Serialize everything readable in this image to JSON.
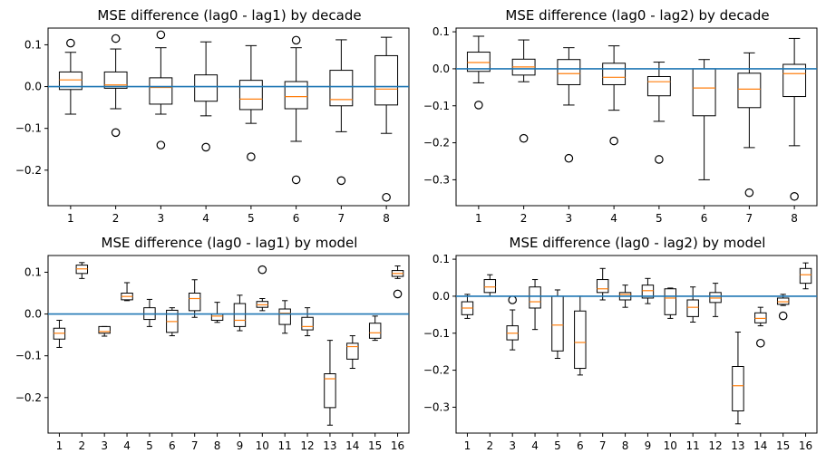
{
  "chart_data": [
    {
      "type": "boxplot",
      "title": "MSE difference (lag0 - lag1) by decade",
      "categories": [
        "1",
        "2",
        "3",
        "4",
        "5",
        "6",
        "7",
        "8"
      ],
      "ylim": [
        -0.285,
        0.14
      ],
      "yticks": [
        0.1,
        0.0,
        -0.1,
        -0.2
      ],
      "ytick_labels": [
        "0.1",
        "0.0",
        "−0.1",
        "−0.2"
      ],
      "reference_line": 0.0,
      "boxes": [
        {
          "whislo": -0.066,
          "q1": -0.007,
          "med": 0.016,
          "q3": 0.035,
          "whishi": 0.082,
          "fliers": [
            0.104
          ]
        },
        {
          "whislo": -0.053,
          "q1": -0.004,
          "med": 0.004,
          "q3": 0.035,
          "whishi": 0.09,
          "fliers": [
            0.115,
            -0.11
          ]
        },
        {
          "whislo": -0.066,
          "q1": -0.042,
          "med": -0.002,
          "q3": 0.021,
          "whishi": 0.093,
          "fliers": [
            0.124,
            -0.14
          ]
        },
        {
          "whislo": -0.07,
          "q1": -0.035,
          "med": 0.0,
          "q3": 0.028,
          "whishi": 0.107,
          "fliers": [
            -0.145
          ]
        },
        {
          "whislo": -0.088,
          "q1": -0.055,
          "med": -0.03,
          "q3": 0.015,
          "whishi": 0.098,
          "fliers": [
            -0.168
          ]
        },
        {
          "whislo": -0.131,
          "q1": -0.053,
          "med": -0.024,
          "q3": 0.012,
          "whishi": 0.093,
          "fliers": [
            0.111,
            -0.223
          ]
        },
        {
          "whislo": -0.108,
          "q1": -0.046,
          "med": -0.031,
          "q3": 0.039,
          "whishi": 0.112,
          "fliers": [
            -0.225
          ]
        },
        {
          "whislo": -0.112,
          "q1": -0.044,
          "med": -0.006,
          "q3": 0.074,
          "whishi": 0.118,
          "fliers": [
            -0.265
          ]
        }
      ]
    },
    {
      "type": "boxplot",
      "title": "MSE difference (lag0 - lag2) by decade",
      "categories": [
        "1",
        "2",
        "3",
        "4",
        "5",
        "6",
        "7",
        "8"
      ],
      "ylim": [
        -0.37,
        0.11
      ],
      "yticks": [
        0.1,
        0.0,
        -0.1,
        -0.2,
        -0.3
      ],
      "ytick_labels": [
        "0.1",
        "0.0",
        "−0.1",
        "−0.2",
        "−0.3"
      ],
      "reference_line": 0.0,
      "boxes": [
        {
          "whislo": -0.038,
          "q1": -0.007,
          "med": 0.017,
          "q3": 0.045,
          "whishi": 0.088,
          "fliers": [
            -0.098
          ]
        },
        {
          "whislo": -0.035,
          "q1": -0.017,
          "med": 0.005,
          "q3": 0.026,
          "whishi": 0.078,
          "fliers": [
            -0.188
          ]
        },
        {
          "whislo": -0.098,
          "q1": -0.043,
          "med": -0.013,
          "q3": 0.025,
          "whishi": 0.057,
          "fliers": [
            -0.242
          ]
        },
        {
          "whislo": -0.112,
          "q1": -0.043,
          "med": -0.023,
          "q3": 0.015,
          "whishi": 0.062,
          "fliers": [
            -0.195
          ]
        },
        {
          "whislo": -0.142,
          "q1": -0.073,
          "med": -0.035,
          "q3": -0.021,
          "whishi": 0.018,
          "fliers": [
            -0.245
          ]
        },
        {
          "whislo": -0.3,
          "q1": -0.127,
          "med": -0.052,
          "q3": 0.0,
          "whishi": 0.025,
          "fliers": []
        },
        {
          "whislo": -0.213,
          "q1": -0.105,
          "med": -0.055,
          "q3": -0.012,
          "whishi": 0.043,
          "fliers": [
            -0.335
          ]
        },
        {
          "whislo": -0.208,
          "q1": -0.075,
          "med": -0.013,
          "q3": 0.012,
          "whishi": 0.082,
          "fliers": [
            -0.345
          ]
        }
      ]
    },
    {
      "type": "boxplot",
      "title": "MSE difference (lag0 - lag1) by model",
      "categories": [
        "1",
        "2",
        "3",
        "4",
        "5",
        "6",
        "7",
        "8",
        "9",
        "10",
        "11",
        "12",
        "13",
        "14",
        "15",
        "16"
      ],
      "ylim": [
        -0.285,
        0.14
      ],
      "yticks": [
        0.1,
        0.0,
        -0.1,
        -0.2
      ],
      "ytick_labels": [
        "0.1",
        "0.0",
        "−0.1",
        "−0.2"
      ],
      "reference_line": 0.0,
      "boxes": [
        {
          "whislo": -0.08,
          "q1": -0.06,
          "med": -0.046,
          "q3": -0.034,
          "whishi": -0.015,
          "fliers": []
        },
        {
          "whislo": 0.085,
          "q1": 0.097,
          "med": 0.108,
          "q3": 0.117,
          "whishi": 0.123,
          "fliers": []
        },
        {
          "whislo": -0.053,
          "q1": -0.046,
          "med": -0.042,
          "q3": -0.03,
          "whishi": -0.03,
          "fliers": []
        },
        {
          "whislo": 0.032,
          "q1": 0.034,
          "med": 0.042,
          "q3": 0.05,
          "whishi": 0.075,
          "fliers": []
        },
        {
          "whislo": -0.03,
          "q1": -0.013,
          "med": 0.0,
          "q3": 0.015,
          "whishi": 0.035,
          "fliers": []
        },
        {
          "whislo": -0.052,
          "q1": -0.044,
          "med": -0.018,
          "q3": 0.009,
          "whishi": 0.015,
          "fliers": []
        },
        {
          "whislo": -0.008,
          "q1": 0.008,
          "med": 0.037,
          "q3": 0.05,
          "whishi": 0.082,
          "fliers": []
        },
        {
          "whislo": -0.02,
          "q1": -0.015,
          "med": -0.005,
          "q3": 0.0,
          "whishi": 0.028,
          "fliers": []
        },
        {
          "whislo": -0.04,
          "q1": -0.03,
          "med": -0.015,
          "q3": 0.025,
          "whishi": 0.045,
          "fliers": []
        },
        {
          "whislo": 0.008,
          "q1": 0.016,
          "med": 0.022,
          "q3": 0.03,
          "whishi": 0.037,
          "fliers": [
            0.106
          ]
        },
        {
          "whislo": -0.046,
          "q1": -0.025,
          "med": 0.002,
          "q3": 0.012,
          "whishi": 0.032,
          "fliers": []
        },
        {
          "whislo": -0.052,
          "q1": -0.038,
          "med": -0.03,
          "q3": -0.008,
          "whishi": 0.015,
          "fliers": []
        },
        {
          "whislo": -0.266,
          "q1": -0.224,
          "med": -0.155,
          "q3": -0.143,
          "whishi": -0.063,
          "fliers": []
        },
        {
          "whislo": -0.13,
          "q1": -0.108,
          "med": -0.078,
          "q3": -0.07,
          "whishi": -0.052,
          "fliers": []
        },
        {
          "whislo": -0.063,
          "q1": -0.058,
          "med": -0.045,
          "q3": -0.022,
          "whishi": -0.005,
          "fliers": []
        },
        {
          "whislo": 0.085,
          "q1": 0.09,
          "med": 0.097,
          "q3": 0.104,
          "whishi": 0.115,
          "fliers": [
            0.048
          ]
        }
      ]
    },
    {
      "type": "boxplot",
      "title": "MSE difference (lag0 - lag2) by model",
      "categories": [
        "1",
        "2",
        "3",
        "4",
        "5",
        "6",
        "7",
        "8",
        "9",
        "10",
        "11",
        "12",
        "13",
        "14",
        "15",
        "16"
      ],
      "ylim": [
        -0.37,
        0.11
      ],
      "yticks": [
        0.1,
        0.0,
        -0.1,
        -0.2,
        -0.3
      ],
      "ytick_labels": [
        "0.1",
        "0.0",
        "−0.1",
        "−0.2",
        "−0.3"
      ],
      "reference_line": 0.0,
      "boxes": [
        {
          "whislo": -0.06,
          "q1": -0.05,
          "med": -0.032,
          "q3": -0.015,
          "whishi": 0.005,
          "fliers": []
        },
        {
          "whislo": 0.0,
          "q1": 0.01,
          "med": 0.025,
          "q3": 0.045,
          "whishi": 0.058,
          "fliers": []
        },
        {
          "whislo": -0.145,
          "q1": -0.118,
          "med": -0.1,
          "q3": -0.08,
          "whishi": -0.037,
          "fliers": [
            -0.01
          ]
        },
        {
          "whislo": -0.09,
          "q1": -0.032,
          "med": -0.015,
          "q3": 0.025,
          "whishi": 0.045,
          "fliers": []
        },
        {
          "whislo": -0.168,
          "q1": -0.148,
          "med": -0.078,
          "q3": 0.0,
          "whishi": 0.017,
          "fliers": []
        },
        {
          "whislo": -0.213,
          "q1": -0.195,
          "med": -0.125,
          "q3": -0.04,
          "whishi": 0.0,
          "fliers": []
        },
        {
          "whislo": -0.01,
          "q1": 0.01,
          "med": 0.02,
          "q3": 0.045,
          "whishi": 0.075,
          "fliers": []
        },
        {
          "whislo": -0.03,
          "q1": -0.01,
          "med": 0.005,
          "q3": 0.01,
          "whishi": 0.03,
          "fliers": []
        },
        {
          "whislo": -0.02,
          "q1": -0.005,
          "med": 0.015,
          "q3": 0.03,
          "whishi": 0.048,
          "fliers": []
        },
        {
          "whislo": -0.06,
          "q1": -0.05,
          "med": -0.005,
          "q3": 0.02,
          "whishi": 0.022,
          "fliers": []
        },
        {
          "whislo": -0.07,
          "q1": -0.055,
          "med": -0.03,
          "q3": -0.01,
          "whishi": 0.025,
          "fliers": []
        },
        {
          "whislo": -0.055,
          "q1": -0.017,
          "med": -0.005,
          "q3": 0.01,
          "whishi": 0.035,
          "fliers": []
        },
        {
          "whislo": -0.345,
          "q1": -0.31,
          "med": -0.242,
          "q3": -0.19,
          "whishi": -0.097,
          "fliers": []
        },
        {
          "whislo": -0.08,
          "q1": -0.072,
          "med": -0.06,
          "q3": -0.045,
          "whishi": -0.03,
          "fliers": [
            -0.127
          ]
        },
        {
          "whislo": -0.025,
          "q1": -0.022,
          "med": -0.015,
          "q3": -0.005,
          "whishi": 0.005,
          "fliers": [
            -0.053
          ]
        },
        {
          "whislo": 0.02,
          "q1": 0.035,
          "med": 0.058,
          "q3": 0.075,
          "whishi": 0.09,
          "fliers": []
        }
      ]
    }
  ],
  "colors": {
    "box": "#000000",
    "median": "#ff7f0e",
    "reference_line": "#1f77b4"
  }
}
